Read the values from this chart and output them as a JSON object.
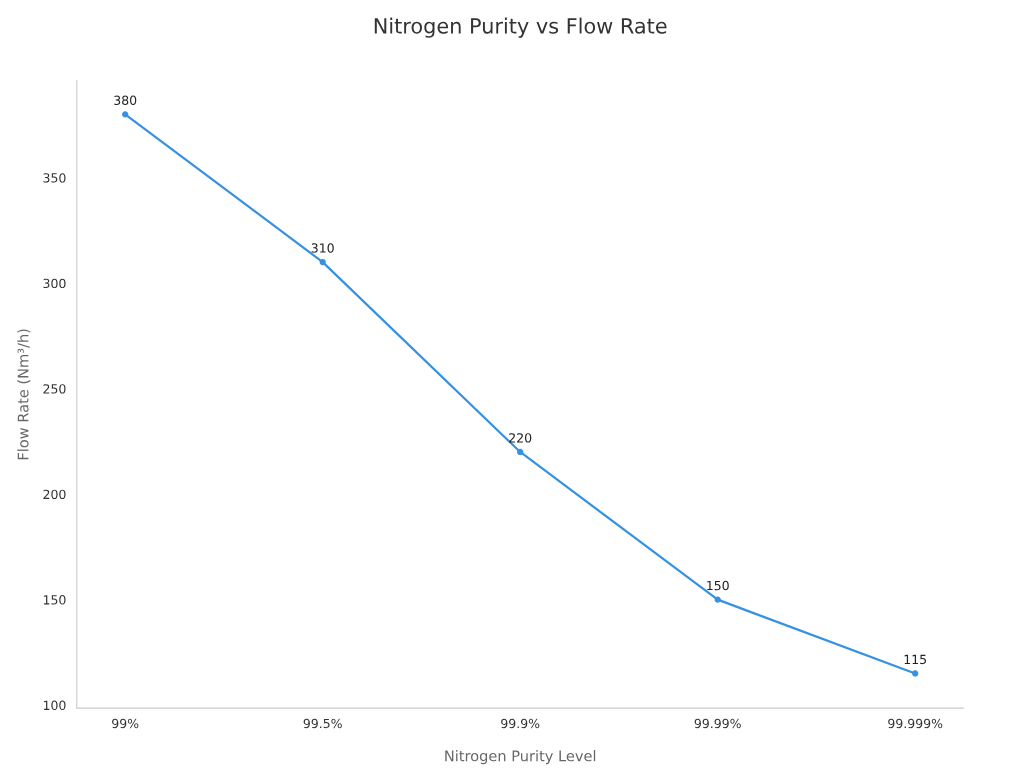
{
  "chart_data": {
    "type": "line",
    "title": "Nitrogen Purity vs Flow Rate",
    "xlabel": "Nitrogen Purity Level",
    "ylabel": "Flow Rate (Nm³/h)",
    "categories": [
      "99%",
      "99.5%",
      "99.9%",
      "99.99%",
      "99.999%"
    ],
    "series": [
      {
        "color": "#3591e3",
        "values": [
          380,
          310,
          220,
          150,
          115
        ]
      }
    ],
    "ylim": [
      98.6,
      396
    ],
    "yticks": [
      100,
      150,
      200,
      250,
      300,
      350
    ],
    "data_labels": true,
    "marker": "circle",
    "line_style": "solid",
    "grid": false,
    "legend": false
  }
}
